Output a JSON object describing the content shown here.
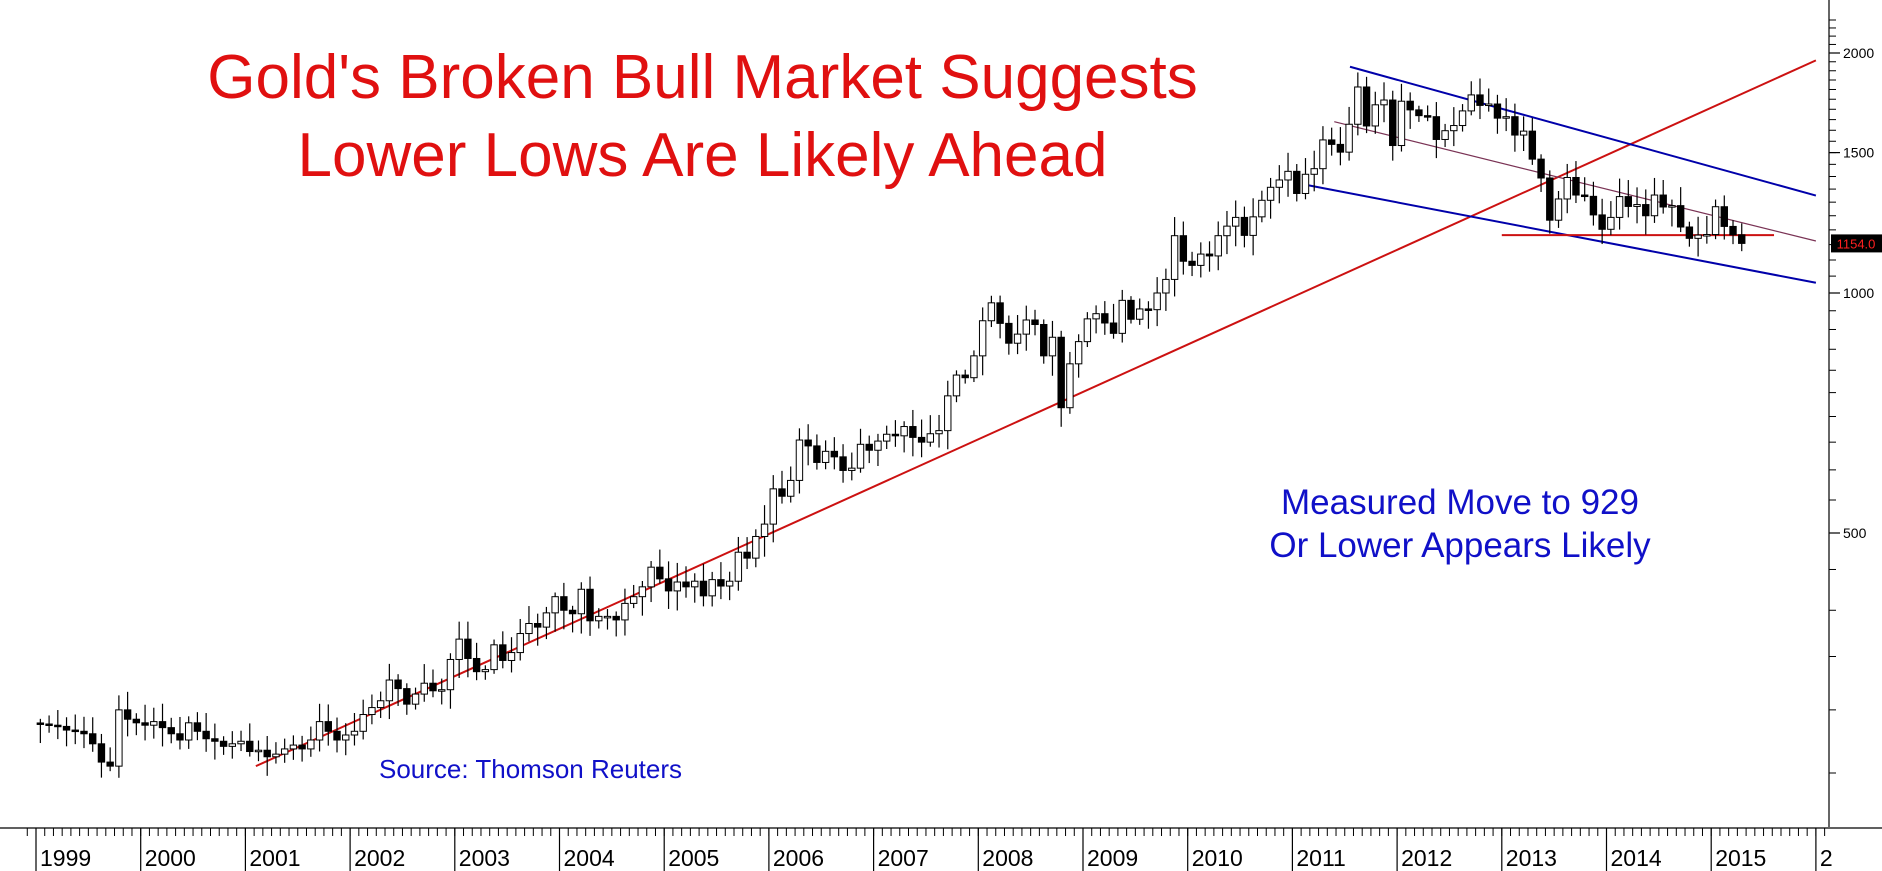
{
  "chart_data": {
    "type": "candlestick",
    "title": [
      "Gold's Broken Bull Market Suggests",
      "Lower Lows Are Likely Ahead"
    ],
    "annotation": [
      "Measured Move to 929",
      "Or Lower Appears Likely"
    ],
    "source": "Source: Thomson Reuters",
    "price_label": "1154.0",
    "y_scale": "log",
    "y_ticks": [
      500,
      1000,
      1500,
      2000
    ],
    "x_ticks": [
      "1999",
      "2000",
      "2001",
      "2002",
      "2003",
      "2004",
      "2005",
      "2006",
      "2007",
      "2008",
      "2009",
      "2010",
      "2011",
      "2012",
      "2013",
      "2014",
      "2015",
      "2"
    ],
    "candle_interval": "monthly",
    "candle_color_up": "#ffffff",
    "candle_color_down": "#000000",
    "series_closes": [
      {
        "year": 1999,
        "closes": [
          288,
          287,
          286,
          283,
          282,
          280,
          272,
          258,
          255,
          300,
          292,
          289
        ]
      },
      {
        "year": 2000,
        "closes": [
          287,
          290,
          285,
          280,
          275,
          289,
          282,
          276,
          274,
          270,
          272,
          274
        ]
      },
      {
        "year": 2001,
        "closes": [
          266,
          267,
          262,
          264,
          268,
          271,
          268,
          275,
          290,
          282,
          275,
          279
        ]
      },
      {
        "year": 2002,
        "closes": [
          282,
          296,
          302,
          308,
          327,
          319,
          305,
          314,
          324,
          317,
          318,
          347
        ]
      },
      {
        "year": 2003,
        "closes": [
          368,
          348,
          335,
          337,
          362,
          346,
          354,
          374,
          385,
          381,
          397,
          416
        ]
      },
      {
        "year": 2004,
        "closes": [
          400,
          396,
          425,
          388,
          393,
          393,
          389,
          408,
          416,
          428,
          453,
          438
        ]
      },
      {
        "year": 2005,
        "closes": [
          423,
          434,
          428,
          435,
          417,
          437,
          429,
          435,
          473,
          465,
          495,
          513
        ]
      },
      {
        "year": 2006,
        "closes": [
          568,
          556,
          582,
          654,
          643,
          613,
          633,
          623,
          599,
          603,
          646,
          635
        ]
      },
      {
        "year": 2007,
        "closes": [
          652,
          665,
          662,
          680,
          659,
          650,
          666,
          672,
          743,
          789,
          783,
          834
        ]
      },
      {
        "year": 2008,
        "closes": [
          923,
          972,
          916,
          865,
          888,
          925,
          913,
          834,
          880,
          718,
          815,
          869
        ]
      },
      {
        "year": 2009,
        "closes": [
          928,
          942,
          917,
          890,
          979,
          927,
          955,
          953,
          1000,
          1040,
          1180,
          1096
        ]
      },
      {
        "year": 2010,
        "closes": [
          1083,
          1119,
          1113,
          1180,
          1213,
          1244,
          1181,
          1246,
          1307,
          1357,
          1386,
          1421
        ]
      },
      {
        "year": 2011,
        "closes": [
          1333,
          1409,
          1432,
          1556,
          1536,
          1502,
          1628,
          1813,
          1620,
          1722,
          1746,
          1531
        ]
      },
      {
        "year": 2012,
        "closes": [
          1740,
          1697,
          1669,
          1664,
          1558,
          1598,
          1622,
          1692,
          1772,
          1719,
          1726,
          1657
        ]
      },
      {
        "year": 2013,
        "closes": [
          1664,
          1578,
          1596,
          1472,
          1394,
          1234,
          1312,
          1396,
          1327,
          1322,
          1253,
          1202
        ]
      },
      {
        "year": 2014,
        "closes": [
          1244,
          1321,
          1284,
          1291,
          1250,
          1327,
          1282,
          1287,
          1210,
          1171,
          1182,
          1184
        ]
      },
      {
        "year": 2015,
        "closes": [
          1283,
          1212,
          1183,
          1154
        ]
      }
    ],
    "trendlines": [
      {
        "kind": "support",
        "color": "#cc1111",
        "from": {
          "t": 2001.1,
          "v": 255
        },
        "to": {
          "t": 2016.0,
          "v": 1958
        }
      },
      {
        "kind": "channel-upper",
        "color": "#0000aa",
        "from": {
          "t": 2011.55,
          "v": 1922
        },
        "to": {
          "t": 2016.0,
          "v": 1325
        }
      },
      {
        "kind": "channel-lower",
        "color": "#0000aa",
        "from": {
          "t": 2011.15,
          "v": 1365
        },
        "to": {
          "t": 2016.0,
          "v": 1030
        }
      },
      {
        "kind": "channel-mid",
        "color": "#7a3355",
        "from": {
          "t": 2011.4,
          "v": 1640
        },
        "to": {
          "t": 2016.0,
          "v": 1162
        }
      },
      {
        "kind": "horizontal-support",
        "color": "#cc1111",
        "from": {
          "t": 2013.0,
          "v": 1182
        },
        "to": {
          "t": 2015.6,
          "v": 1182
        }
      }
    ],
    "grid": false,
    "legend": "none"
  }
}
